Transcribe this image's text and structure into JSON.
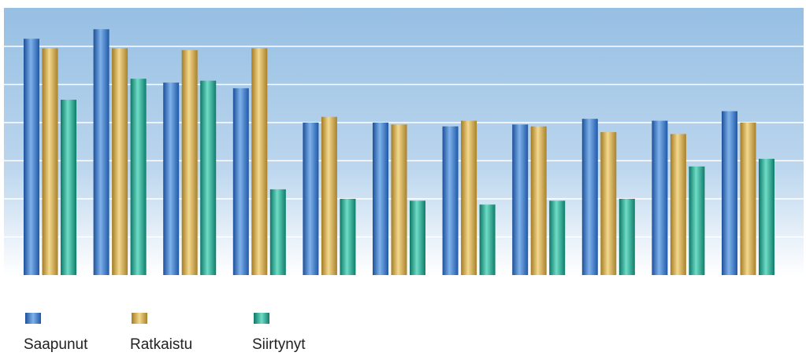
{
  "chart_data": {
    "type": "bar",
    "categories": [
      "",
      "",
      "",
      "",
      "",
      "",
      "",
      "",
      "",
      "",
      ""
    ],
    "series": [
      {
        "name": "Saapunut",
        "color": "#3a78c4",
        "values": [
          6.2,
          6.45,
          5.05,
          4.9,
          4.0,
          4.0,
          3.9,
          3.95,
          4.1,
          4.05,
          4.3
        ]
      },
      {
        "name": "Ratkaistu",
        "color": "#d2ad55",
        "values": [
          5.95,
          5.95,
          5.9,
          5.95,
          4.15,
          3.95,
          4.05,
          3.9,
          3.75,
          3.7,
          4.0
        ]
      },
      {
        "name": "Siirtynyt",
        "color": "#1fa891",
        "values": [
          4.6,
          5.15,
          5.1,
          2.25,
          2.0,
          1.95,
          1.85,
          1.95,
          2.0,
          2.85,
          3.05
        ]
      }
    ],
    "ylim": [
      0,
      7
    ],
    "gridlines": [
      1,
      2,
      3,
      4,
      5,
      6
    ],
    "grid": true,
    "legend": "bottom-left",
    "background_gradient": [
      "#96bfe3",
      "#ffffff"
    ]
  }
}
